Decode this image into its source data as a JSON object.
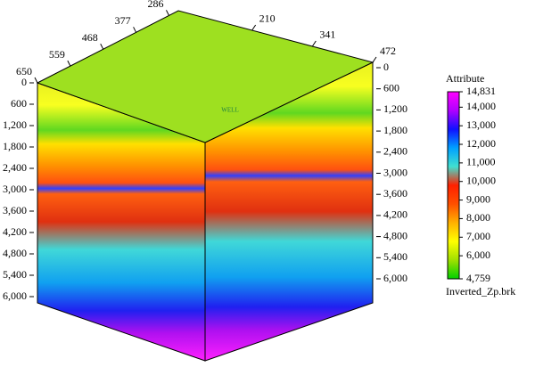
{
  "chart_data": {
    "type": "seismic-cube",
    "annotation": "WELL",
    "left_axis": {
      "lim": [
        0,
        6000
      ],
      "ticks": [
        0,
        600,
        {
          "value": 1200,
          "label": "1,200"
        },
        {
          "value": 1800,
          "label": "1,800"
        },
        {
          "value": 2400,
          "label": "2,400"
        },
        {
          "value": 3000,
          "label": "3,000"
        },
        {
          "value": 3600,
          "label": "3,600"
        },
        {
          "value": 4200,
          "label": "4,200"
        },
        {
          "value": 4800,
          "label": "4,800"
        },
        {
          "value": 5400,
          "label": "5,400"
        },
        {
          "value": 6000,
          "label": "6,000"
        }
      ]
    },
    "right_axis": {
      "lim": [
        0,
        6000
      ],
      "ticks": [
        0,
        600,
        {
          "value": 1200,
          "label": "1,200"
        },
        {
          "value": 1800,
          "label": "1,800"
        },
        {
          "value": 2400,
          "label": "2,400"
        },
        {
          "value": 3000,
          "label": "3,000"
        },
        {
          "value": 3600,
          "label": "3,600"
        },
        {
          "value": 4200,
          "label": "4,200"
        },
        {
          "value": 4800,
          "label": "4,800"
        },
        {
          "value": 5400,
          "label": "5,400"
        },
        {
          "value": 6000,
          "label": "6,000"
        }
      ]
    },
    "inline_axis": {
      "lim": [
        650,
        260
      ],
      "ticks": [
        650,
        559,
        468,
        377,
        286
      ]
    },
    "crossline_axis": {
      "lim": [
        50,
        472
      ],
      "ticks": [
        210,
        341,
        472
      ]
    },
    "colorbar": {
      "title": "Attribute",
      "label": "Inverted_Zp.brk",
      "lim": [
        4759,
        14831
      ],
      "ticks": [
        {
          "value": 4759,
          "label": "4,759"
        },
        {
          "value": 6000,
          "label": "6,000"
        },
        {
          "value": 7000,
          "label": "7,000"
        },
        {
          "value": 8000,
          "label": "8,000"
        },
        {
          "value": 9000,
          "label": "9,000"
        },
        {
          "value": 10000,
          "label": "10,000"
        },
        {
          "value": 11000,
          "label": "11,000"
        },
        {
          "value": 12000,
          "label": "12,000"
        },
        {
          "value": 13000,
          "label": "13,000"
        },
        {
          "value": 14000,
          "label": "14,000"
        },
        {
          "value": 14831,
          "label": "14,831"
        }
      ],
      "colors": [
        "#00d000",
        "#a0e000",
        "#ffff00",
        "#ffb000",
        "#ff5000",
        "#ff2000",
        "#40e0d0",
        "#00a0ff",
        "#1010ff",
        "#b000ff",
        "#ff00ff"
      ]
    }
  }
}
